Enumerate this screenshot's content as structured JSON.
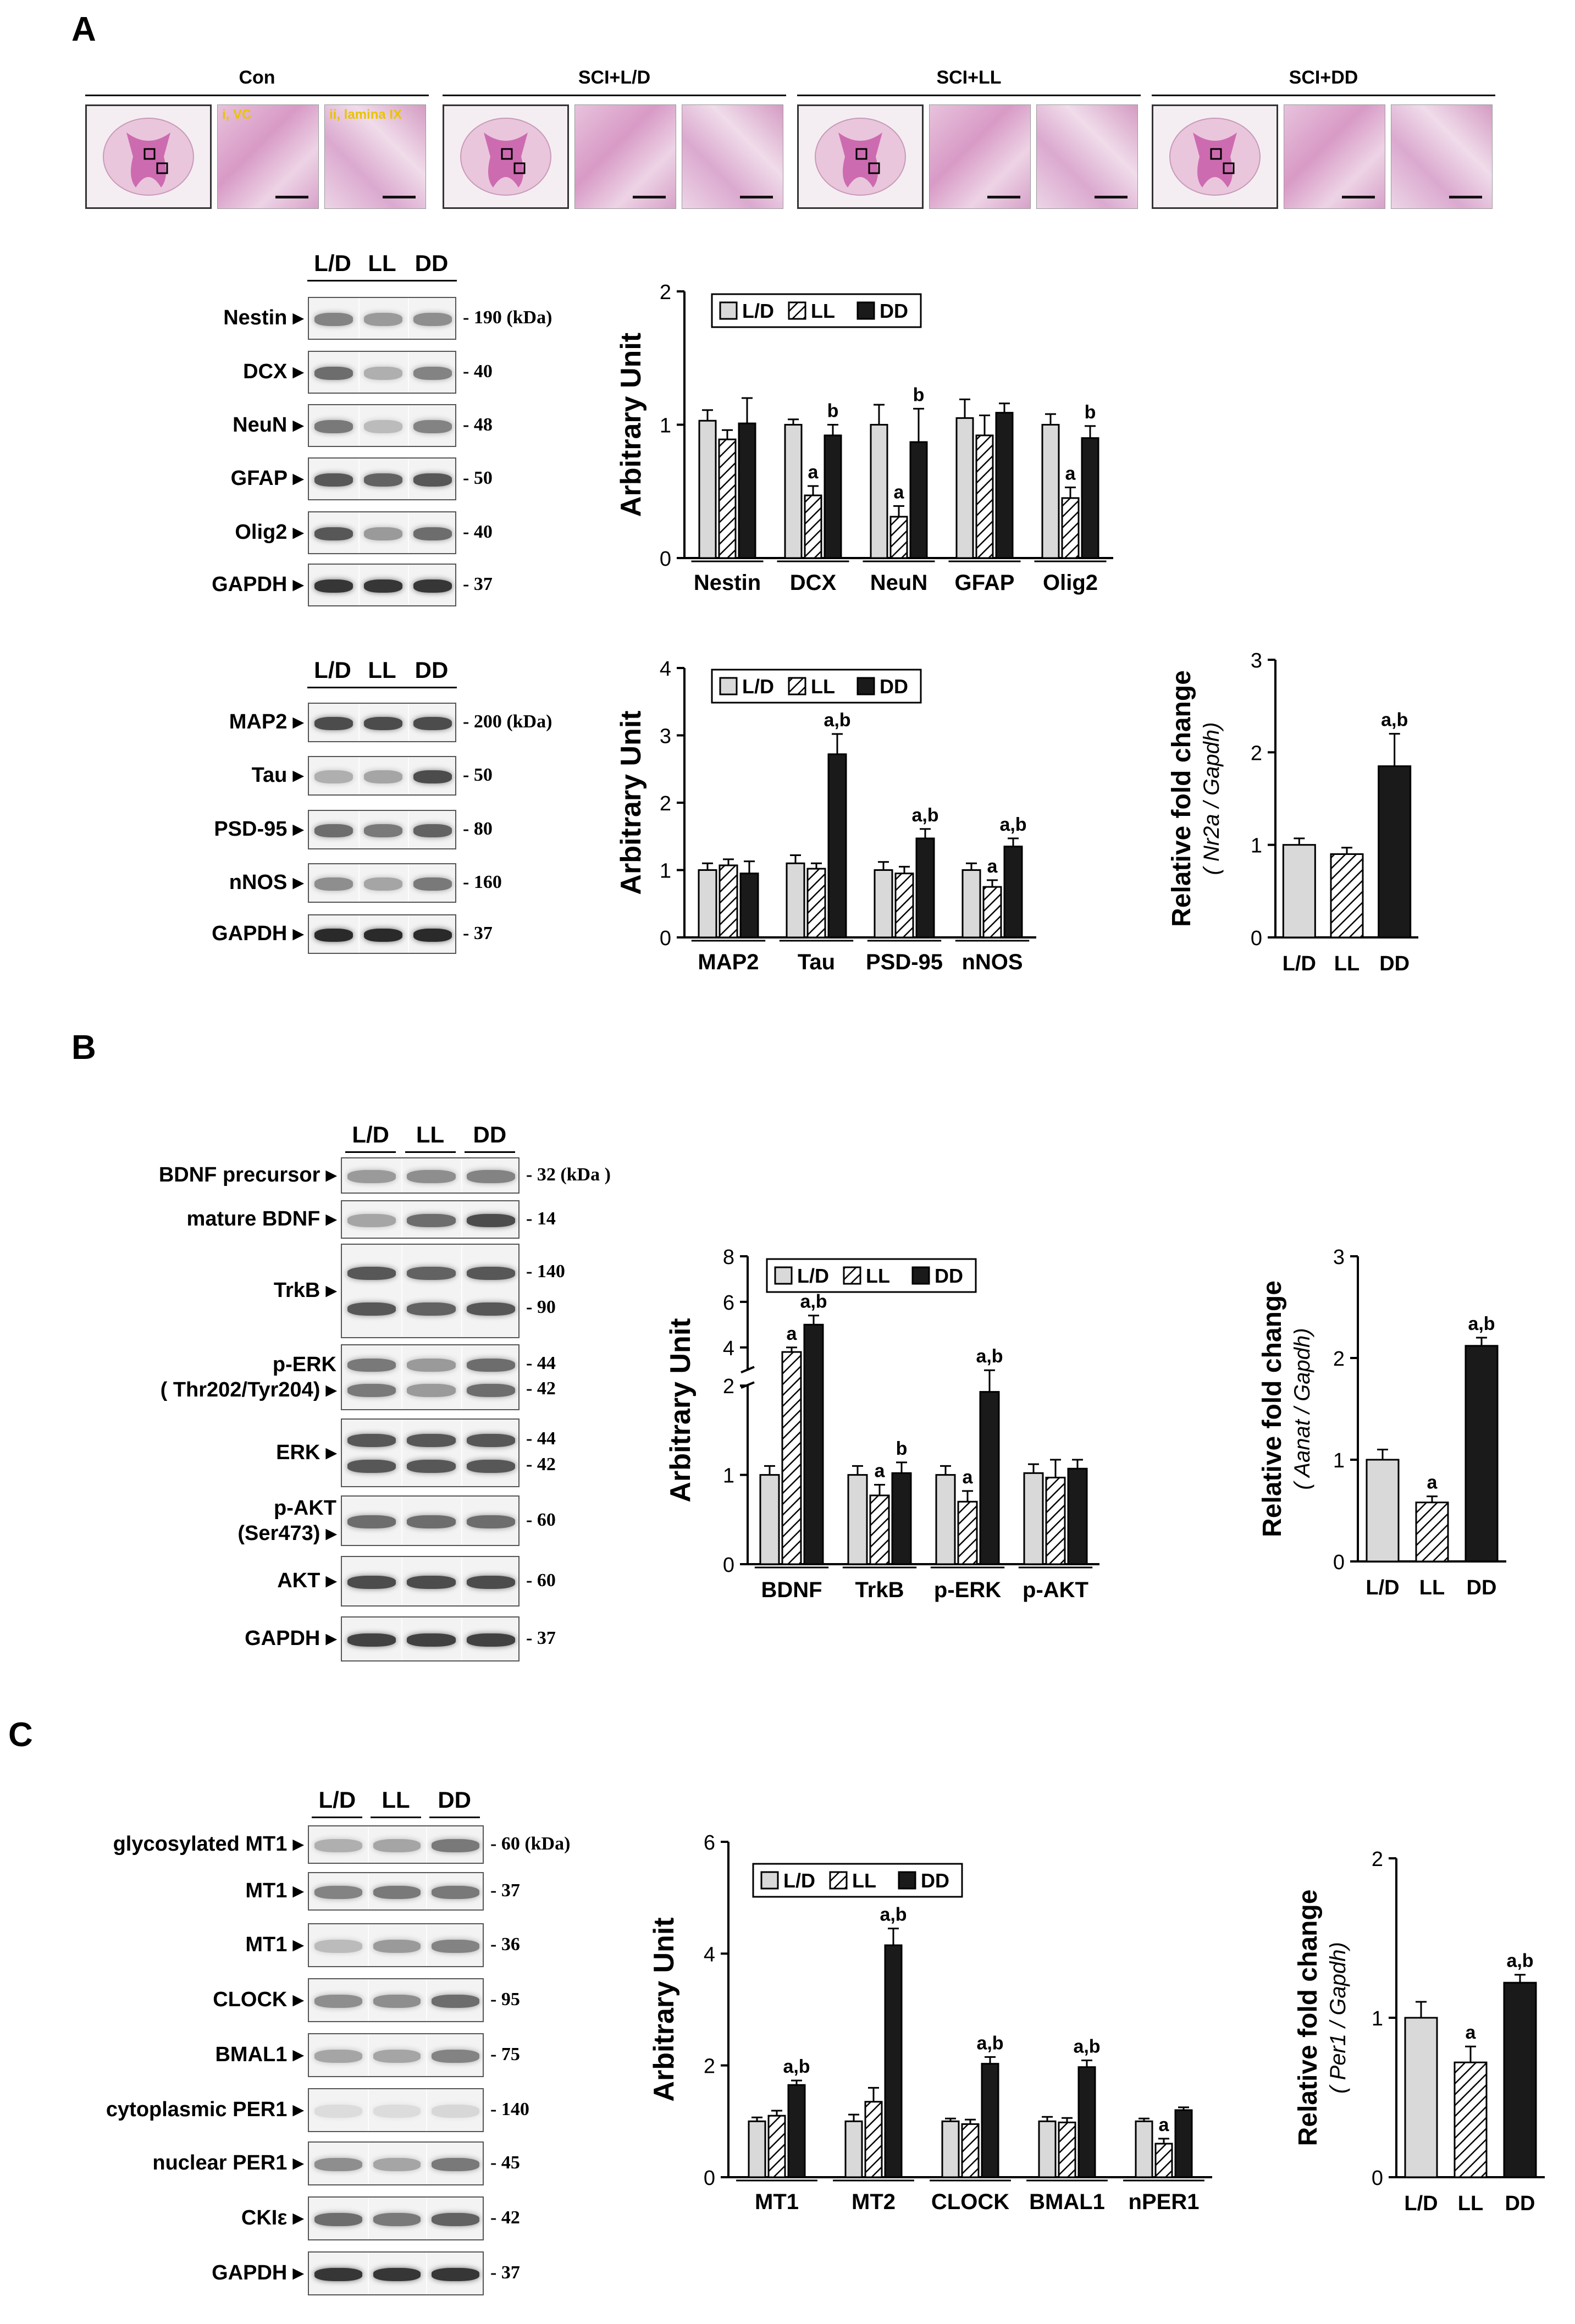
{
  "panels": {
    "a": "A",
    "b": "B",
    "c": "C"
  },
  "histology": {
    "groups": [
      "Con",
      "SCI+L/D",
      "SCI+LL",
      "SCI+DD"
    ],
    "inset_labels": [
      "i, VC",
      "ii, lamina IX"
    ]
  },
  "lanes": [
    "L/D",
    "LL",
    "DD"
  ],
  "blots": {
    "A1": {
      "rows": [
        {
          "label": "Nestin ▸",
          "kda": "- 190 (kDa)"
        },
        {
          "label": "DCX ▸",
          "kda": "- 40"
        },
        {
          "label": "NeuN ▸",
          "kda": "- 48"
        },
        {
          "label": "GFAP ▸",
          "kda": "- 50"
        },
        {
          "label": "Olig2 ▸",
          "kda": "- 40"
        },
        {
          "label": "GAPDH ▸",
          "kda": "- 37"
        }
      ]
    },
    "A2": {
      "rows": [
        {
          "label": "MAP2 ▸",
          "kda": "- 200 (kDa)"
        },
        {
          "label": "Tau ▸",
          "kda": "- 50"
        },
        {
          "label": "PSD-95 ▸",
          "kda": "- 80"
        },
        {
          "label": "nNOS ▸",
          "kda": "- 160"
        },
        {
          "label": "GAPDH ▸",
          "kda": "- 37"
        }
      ]
    },
    "B": {
      "rows": [
        {
          "label": "BDNF precursor ▸",
          "kda": "- 32 (kDa )"
        },
        {
          "label": "mature BDNF ▸",
          "kda": "- 14"
        },
        {
          "label": "TrkB ▸",
          "kda": "- 140",
          "kda2": "- 90"
        },
        {
          "label": "p-ERK\n( Thr202/Tyr204) ▸",
          "kda": "- 44",
          "kda2": "- 42"
        },
        {
          "label": "ERK ▸",
          "kda": "- 44",
          "kda2": "- 42"
        },
        {
          "label": "p-AKT\n(Ser473) ▸",
          "kda": "- 60"
        },
        {
          "label": "AKT ▸",
          "kda": "- 60"
        },
        {
          "label": "GAPDH ▸",
          "kda": "- 37"
        }
      ]
    },
    "C": {
      "rows": [
        {
          "label": "glycosylated MT1 ▸",
          "kda": "- 60 (kDa)"
        },
        {
          "label": "MT1 ▸",
          "kda": "- 37"
        },
        {
          "label": "MT1 ▸",
          "kda": "- 36"
        },
        {
          "label": "CLOCK ▸",
          "kda": "- 95"
        },
        {
          "label": "BMAL1 ▸",
          "kda": "- 75"
        },
        {
          "label": "cytoplasmic PER1 ▸",
          "kda": "- 140"
        },
        {
          "label": "nuclear PER1 ▸",
          "kda": "- 45"
        },
        {
          "label": "CKIε ▸",
          "kda": "- 42"
        },
        {
          "label": "GAPDH ▸",
          "kda": "- 37"
        }
      ]
    }
  },
  "colors": {
    "LD": "#d9d9d9",
    "LL": "hatched",
    "DD": "#1a1a1a"
  },
  "chart_data": [
    {
      "id": "A-markers",
      "type": "bar",
      "categories": [
        "Nestin",
        "DCX",
        "NeuN",
        "GFAP",
        "Olig2"
      ],
      "series": [
        {
          "name": "L/D",
          "values": [
            1.03,
            1.0,
            1.0,
            1.05,
            1.0
          ],
          "errors": [
            0.08,
            0.04,
            0.15,
            0.14,
            0.08
          ]
        },
        {
          "name": "LL",
          "values": [
            0.89,
            0.47,
            0.31,
            0.92,
            0.45
          ],
          "errors": [
            0.07,
            0.07,
            0.08,
            0.15,
            0.08
          ]
        },
        {
          "name": "DD",
          "values": [
            1.01,
            0.92,
            0.87,
            1.09,
            0.9
          ],
          "errors": [
            0.19,
            0.08,
            0.25,
            0.07,
            0.09
          ]
        }
      ],
      "annotations": [
        {
          "category": "DCX",
          "series": "LL",
          "text": "a"
        },
        {
          "category": "DCX",
          "series": "DD",
          "text": "b"
        },
        {
          "category": "NeuN",
          "series": "LL",
          "text": "a"
        },
        {
          "category": "NeuN",
          "series": "DD",
          "text": "b"
        },
        {
          "category": "Olig2",
          "series": "LL",
          "text": "a"
        },
        {
          "category": "Olig2",
          "series": "DD",
          "text": "b"
        }
      ],
      "ylabel": "Arbitrary Unit",
      "ylim": [
        0,
        2
      ],
      "yticks": [
        "0",
        "1",
        "2"
      ],
      "legend": "top"
    },
    {
      "id": "A-synaptic",
      "type": "bar",
      "categories": [
        "MAP2",
        "Tau",
        "PSD-95",
        "nNOS"
      ],
      "series": [
        {
          "name": "L/D",
          "values": [
            1.0,
            1.1,
            1.0,
            1.0
          ],
          "errors": [
            0.1,
            0.12,
            0.12,
            0.1
          ]
        },
        {
          "name": "LL",
          "values": [
            1.07,
            1.02,
            0.95,
            0.75
          ],
          "errors": [
            0.09,
            0.08,
            0.1,
            0.1
          ]
        },
        {
          "name": "DD",
          "values": [
            0.95,
            2.72,
            1.47,
            1.35
          ],
          "errors": [
            0.18,
            0.3,
            0.14,
            0.12
          ]
        }
      ],
      "annotations": [
        {
          "category": "Tau",
          "series": "DD",
          "text": "a,b"
        },
        {
          "category": "PSD-95",
          "series": "DD",
          "text": "a,b"
        },
        {
          "category": "nNOS",
          "series": "LL",
          "text": "a"
        },
        {
          "category": "nNOS",
          "series": "DD",
          "text": "a,b"
        }
      ],
      "ylabel": "Arbitrary Unit",
      "ylim": [
        0,
        4
      ],
      "yticks": [
        "0",
        "1",
        "2",
        "3",
        "4"
      ],
      "legend": "top"
    },
    {
      "id": "A-nr2a",
      "type": "bar",
      "categories": [
        "L/D",
        "LL",
        "DD"
      ],
      "values": [
        1.0,
        0.9,
        1.85
      ],
      "errors": [
        0.07,
        0.07,
        0.35
      ],
      "annotations": [
        {
          "category": "DD",
          "text": "a,b"
        }
      ],
      "ylabel": "Relative fold change",
      "ylabel2": "( Nr2a / Gapdh)",
      "ylim": [
        0,
        3
      ],
      "yticks": [
        "0",
        "1",
        "2",
        "3"
      ]
    },
    {
      "id": "B-bdnf",
      "type": "bar",
      "categories": [
        "BDNF",
        "TrkB",
        "p-ERK",
        "p-AKT"
      ],
      "series": [
        {
          "name": "L/D",
          "values": [
            1.0,
            1.0,
            1.0,
            1.02
          ],
          "errors": [
            0.1,
            0.1,
            0.1,
            0.1
          ]
        },
        {
          "name": "LL",
          "values": [
            3.8,
            0.77,
            0.7,
            0.97
          ],
          "errors": [
            0.2,
            0.12,
            0.12,
            0.2
          ]
        },
        {
          "name": "DD",
          "values": [
            5.0,
            1.02,
            1.93,
            1.07
          ],
          "errors": [
            0.4,
            0.12,
            0.2,
            0.1
          ]
        }
      ],
      "annotations": [
        {
          "category": "BDNF",
          "series": "LL",
          "text": "a"
        },
        {
          "category": "BDNF",
          "series": "DD",
          "text": "a,b"
        },
        {
          "category": "TrkB",
          "series": "LL",
          "text": "a"
        },
        {
          "category": "TrkB",
          "series": "DD",
          "text": "b"
        },
        {
          "category": "p-ERK",
          "series": "LL",
          "text": "a"
        },
        {
          "category": "p-ERK",
          "series": "DD",
          "text": "a,b"
        }
      ],
      "ylabel": "Arbitrary Unit",
      "axis_break": true,
      "yticks": [
        "0",
        "1",
        "2",
        "4",
        "6",
        "8"
      ],
      "legend": "top"
    },
    {
      "id": "B-aanat",
      "type": "bar",
      "categories": [
        "L/D",
        "LL",
        "DD"
      ],
      "values": [
        1.0,
        0.58,
        2.12
      ],
      "errors": [
        0.1,
        0.06,
        0.08
      ],
      "annotations": [
        {
          "category": "LL",
          "text": "a"
        },
        {
          "category": "DD",
          "text": "a,b"
        }
      ],
      "ylabel": "Relative fold change",
      "ylabel2": "( Aanat / Gapdh)",
      "ylim": [
        0,
        3
      ],
      "yticks": [
        "0",
        "1",
        "2",
        "3"
      ]
    },
    {
      "id": "C-clock",
      "type": "bar",
      "categories": [
        "MT1",
        "MT2",
        "CLOCK",
        "BMAL1",
        "nPER1"
      ],
      "series": [
        {
          "name": "L/D",
          "values": [
            1.0,
            1.0,
            1.0,
            1.0,
            1.0
          ],
          "errors": [
            0.07,
            0.12,
            0.05,
            0.08,
            0.05
          ]
        },
        {
          "name": "LL",
          "values": [
            1.1,
            1.35,
            0.95,
            0.98,
            0.6
          ],
          "errors": [
            0.09,
            0.25,
            0.08,
            0.08,
            0.09
          ]
        },
        {
          "name": "DD",
          "values": [
            1.65,
            4.15,
            2.03,
            1.97,
            1.2
          ],
          "errors": [
            0.08,
            0.3,
            0.12,
            0.12,
            0.05
          ]
        }
      ],
      "annotations": [
        {
          "category": "MT1",
          "series": "DD",
          "text": "a,b"
        },
        {
          "category": "MT2",
          "series": "DD",
          "text": "a,b"
        },
        {
          "category": "CLOCK",
          "series": "DD",
          "text": "a,b"
        },
        {
          "category": "BMAL1",
          "series": "DD",
          "text": "a,b"
        },
        {
          "category": "nPER1",
          "series": "LL",
          "text": "a"
        }
      ],
      "ylabel": "Arbitrary Unit",
      "ylim": [
        0,
        6
      ],
      "yticks": [
        "0",
        "2",
        "4",
        "6"
      ],
      "legend": "top"
    },
    {
      "id": "C-per1",
      "type": "bar",
      "categories": [
        "L/D",
        "LL",
        "DD"
      ],
      "values": [
        1.0,
        0.72,
        1.22
      ],
      "errors": [
        0.1,
        0.1,
        0.05
      ],
      "annotations": [
        {
          "category": "LL",
          "text": "a"
        },
        {
          "category": "DD",
          "text": "a,b"
        }
      ],
      "ylabel": "Relative fold change",
      "ylabel2": "( Per1 / Gapdh)",
      "ylim": [
        0,
        2
      ],
      "yticks": [
        "0",
        "1",
        "2"
      ]
    }
  ]
}
